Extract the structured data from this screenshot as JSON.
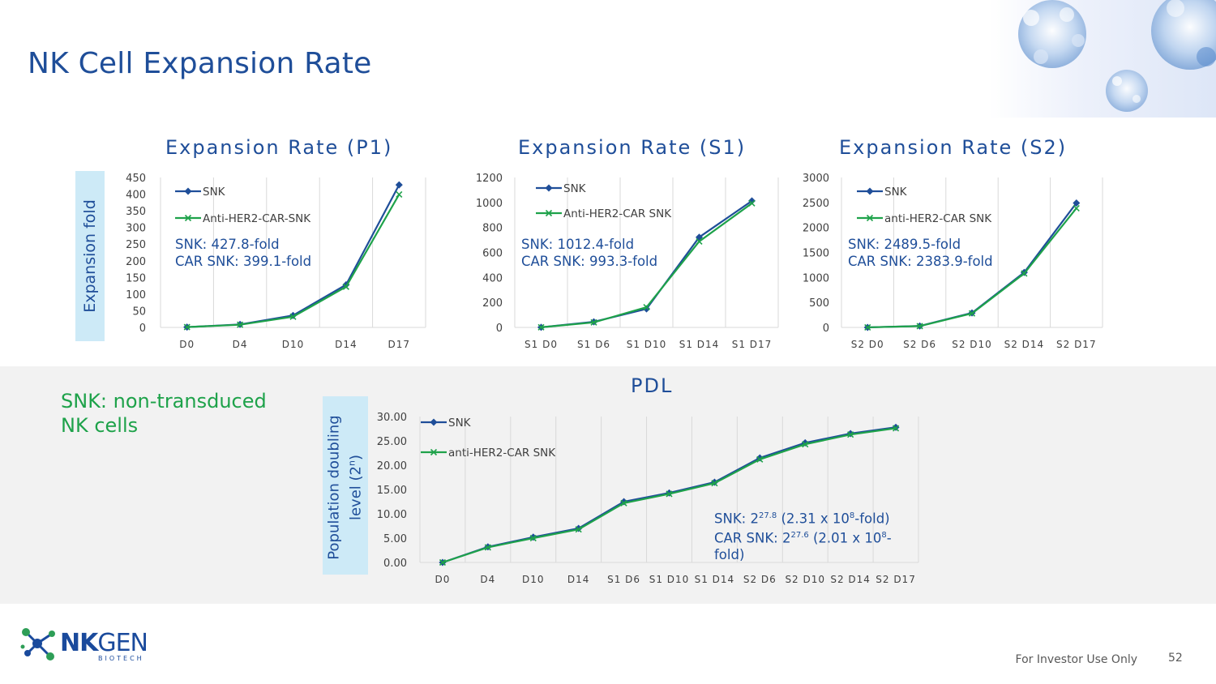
{
  "page": {
    "title": "NK Cell Expansion Rate",
    "footer": "For Investor Use Only",
    "page_number": "52",
    "logo_main": "NK",
    "logo_gen": "GEN",
    "logo_sub": "BIOTECH",
    "green_note": [
      "SNK: non-transduced",
      "NK cells"
    ],
    "expansion_ylabel": "Expansion fold",
    "pdl_ylabel_line1": "Population doubling",
    "pdl_ylabel_line2": "level (2",
    "pdl_ylabel_sup": "n",
    "pdl_ylabel_end": ")",
    "colors": {
      "title": "#1f4e99",
      "snk": "#1f4e99",
      "car": "#1ea24a",
      "green_note": "#1ea24a",
      "label_box": "#cdeaf7"
    }
  },
  "chart_data": [
    {
      "id": "p1",
      "type": "line",
      "title": "Expansion Rate (P1)",
      "categories": [
        "D0",
        "D4",
        "D10",
        "D14",
        "D17"
      ],
      "ylim": [
        0,
        450
      ],
      "yticks": [
        0,
        50,
        100,
        150,
        200,
        250,
        300,
        350,
        400,
        450
      ],
      "series": [
        {
          "name": "SNK",
          "values": [
            1,
            9,
            36,
            128,
            427.8
          ]
        },
        {
          "name": "Anti-HER2-CAR-SNK",
          "values": [
            1,
            8,
            32,
            122,
            399.1
          ]
        }
      ],
      "annotation": [
        "SNK: 427.8-fold",
        "CAR SNK: 399.1-fold"
      ]
    },
    {
      "id": "s1",
      "type": "line",
      "title": "Expansion Rate (S1)",
      "categories": [
        "S1 D0",
        "S1 D6",
        "S1 D10",
        "S1 D14",
        "S1 D17"
      ],
      "ylim": [
        0,
        1200
      ],
      "yticks": [
        0,
        200,
        400,
        600,
        800,
        1000,
        1200
      ],
      "series": [
        {
          "name": "SNK",
          "values": [
            1,
            45,
            148,
            722,
            1012.4
          ]
        },
        {
          "name": "Anti-HER2-CAR SNK",
          "values": [
            1,
            40,
            162,
            688,
            993.3
          ]
        }
      ],
      "annotation": [
        "SNK: 1012.4-fold",
        "CAR SNK: 993.3-fold"
      ]
    },
    {
      "id": "s2",
      "type": "line",
      "title": "Expansion Rate (S2)",
      "categories": [
        "S2 D0",
        "S2 D6",
        "S2 D10",
        "S2 D14",
        "S2 D17"
      ],
      "ylim": [
        0,
        3000
      ],
      "yticks": [
        0,
        500,
        1000,
        1500,
        2000,
        2500,
        3000
      ],
      "series": [
        {
          "name": "SNK",
          "values": [
            1,
            28,
            290,
            1100,
            2489.5
          ]
        },
        {
          "name": "anti-HER2-CAR SNK",
          "values": [
            1,
            26,
            280,
            1080,
            2383.9
          ]
        }
      ],
      "annotation": [
        "SNK: 2489.5-fold",
        "CAR SNK: 2383.9-fold"
      ]
    },
    {
      "id": "pdl",
      "type": "line",
      "title": "PDL",
      "categories": [
        "D0",
        "D4",
        "D10",
        "D14",
        "S1 D6",
        "S1 D10",
        "S1 D14",
        "S2 D6",
        "S2 D10",
        "S2 D14",
        "S2 D17"
      ],
      "ylim": [
        0,
        30
      ],
      "yticks": [
        "0.00",
        "5.00",
        "10.00",
        "15.00",
        "20.00",
        "25.00",
        "30.00"
      ],
      "series": [
        {
          "name": "SNK",
          "values": [
            0,
            3.2,
            5.2,
            7.0,
            12.5,
            14.3,
            16.5,
            21.5,
            24.6,
            26.5,
            27.8
          ]
        },
        {
          "name": "anti-HER2-CAR SNK",
          "values": [
            0,
            3.1,
            5.0,
            6.8,
            12.2,
            14.1,
            16.3,
            21.2,
            24.3,
            26.3,
            27.6
          ]
        }
      ],
      "annotation": {
        "line1_pre": "SNK: 2",
        "line1_sup": "27.8",
        "line1_mid": " (2.31 x 10",
        "line1_sup2": "8",
        "line1_end": "-fold)",
        "line2_pre": "CAR SNK: 2",
        "line2_sup": "27.6",
        "line2_mid": " (2.01 x 10",
        "line2_sup2": "8",
        "line2_end": "-",
        "line3": "fold)"
      }
    }
  ]
}
